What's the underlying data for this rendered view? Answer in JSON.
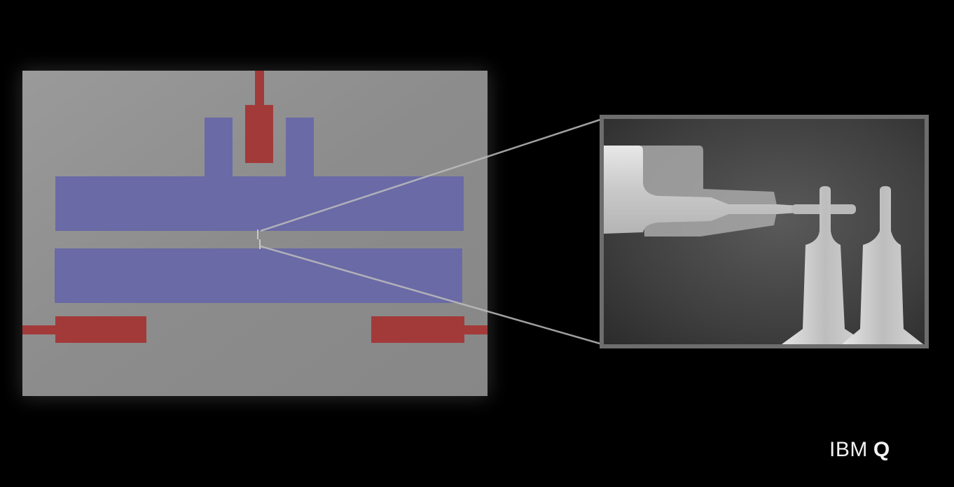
{
  "logo": {
    "text": "IBM",
    "mark": "Q"
  },
  "colors": {
    "background": "#000000",
    "chip_substrate": "#8e8e8e",
    "capacitor_pads": "#6a6aa6",
    "control_lines": "#a33a3a",
    "zoom_callout": "#bdbdbd",
    "inset_frame": "#6d6d6d",
    "logo_text": "#f2f2f2"
  }
}
